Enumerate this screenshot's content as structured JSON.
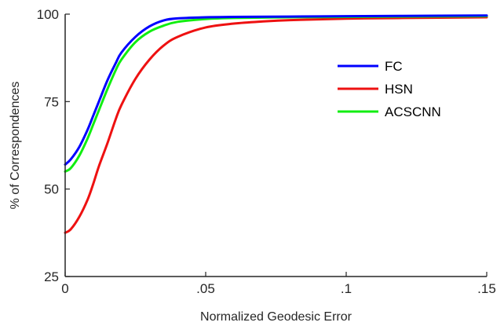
{
  "chart_data": {
    "type": "line",
    "title": "",
    "xlabel": "Normalized Geodesic Error",
    "ylabel": "% of Correspondences",
    "xlim": [
      0,
      0.15
    ],
    "ylim": [
      25,
      100
    ],
    "x_ticks": [
      {
        "value": 0,
        "label": "0"
      },
      {
        "value": 0.05,
        "label": ".05"
      },
      {
        "value": 0.1,
        "label": ".1"
      },
      {
        "value": 0.15,
        "label": ".15"
      }
    ],
    "y_ticks": [
      {
        "value": 25,
        "label": "25"
      },
      {
        "value": 50,
        "label": "50"
      },
      {
        "value": 75,
        "label": "75"
      },
      {
        "value": 100,
        "label": "100"
      }
    ],
    "grid": false,
    "legend_position": "right",
    "series": [
      {
        "name": "FC",
        "color": "#0000ff",
        "x": [
          0,
          0.002,
          0.005,
          0.008,
          0.01,
          0.012,
          0.015,
          0.018,
          0.02,
          0.025,
          0.03,
          0.035,
          0.04,
          0.05,
          0.06,
          0.08,
          0.1,
          0.12,
          0.15
        ],
        "y": [
          57,
          58.5,
          62,
          67,
          71,
          75,
          81,
          86,
          89,
          93.5,
          96.5,
          98.2,
          98.8,
          99.1,
          99.2,
          99.3,
          99.4,
          99.5,
          99.6
        ]
      },
      {
        "name": "HSN",
        "color": "#ee1111",
        "x": [
          0,
          0.002,
          0.005,
          0.008,
          0.01,
          0.012,
          0.015,
          0.018,
          0.02,
          0.025,
          0.03,
          0.035,
          0.04,
          0.05,
          0.06,
          0.07,
          0.08,
          0.1,
          0.12,
          0.15
        ],
        "y": [
          37.5,
          38.5,
          42,
          47,
          51.5,
          56.5,
          63,
          70,
          74,
          81.5,
          87,
          91,
          93.5,
          96.2,
          97.3,
          97.9,
          98.3,
          98.7,
          98.9,
          99.1
        ]
      },
      {
        "name": "ACSCNN",
        "color": "#11ee11",
        "x": [
          0,
          0.002,
          0.005,
          0.008,
          0.01,
          0.012,
          0.015,
          0.018,
          0.02,
          0.025,
          0.03,
          0.035,
          0.04,
          0.05,
          0.06,
          0.08,
          0.1,
          0.12,
          0.15
        ],
        "y": [
          55,
          56,
          59.5,
          64.5,
          68.5,
          72.5,
          78.5,
          84,
          87,
          92,
          95,
          96.7,
          97.8,
          98.6,
          98.9,
          99.1,
          99.2,
          99.3,
          99.4
        ]
      }
    ]
  }
}
